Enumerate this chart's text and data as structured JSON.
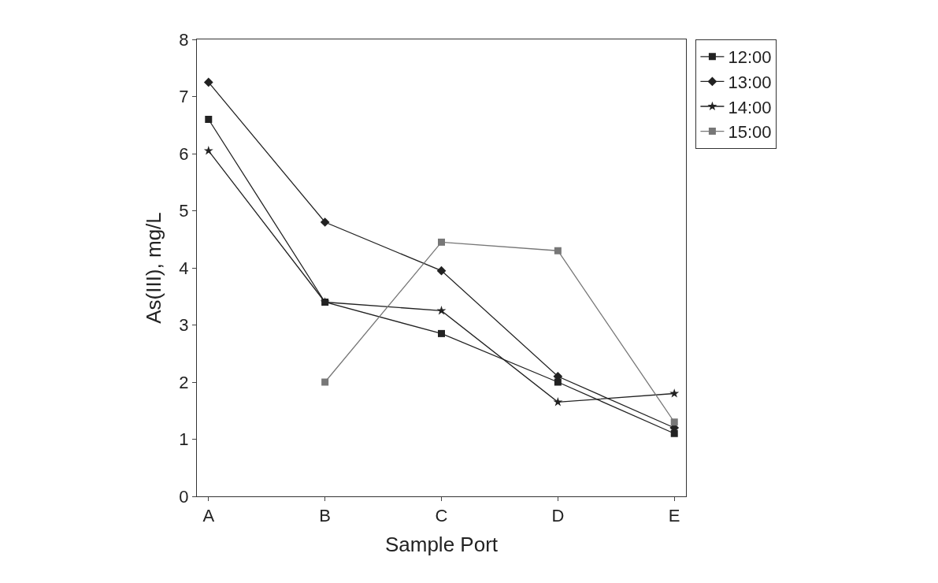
{
  "chart_data": {
    "type": "line",
    "xlabel": "Sample Port",
    "ylabel": "As(III), mg/L",
    "categories": [
      "A",
      "B",
      "C",
      "D",
      "E"
    ],
    "series": [
      {
        "name": "12:00",
        "color": "#222222",
        "marker": "square",
        "values": [
          6.6,
          3.4,
          2.85,
          2.0,
          1.1
        ]
      },
      {
        "name": "13:00",
        "color": "#222222",
        "marker": "diamond",
        "values": [
          7.25,
          4.8,
          3.95,
          2.1,
          1.2
        ]
      },
      {
        "name": "14:00",
        "color": "#222222",
        "marker": "star",
        "values": [
          6.05,
          3.4,
          3.25,
          1.65,
          1.8
        ]
      },
      {
        "name": "15:00",
        "color": "#777777",
        "marker": "square",
        "values": [
          null,
          2.0,
          4.45,
          4.3,
          1.3
        ]
      }
    ],
    "ylim": [
      0,
      8
    ],
    "yticks": [
      0,
      1,
      2,
      3,
      4,
      5,
      6,
      7,
      8
    ],
    "legend": "right",
    "line_style": "solid"
  }
}
